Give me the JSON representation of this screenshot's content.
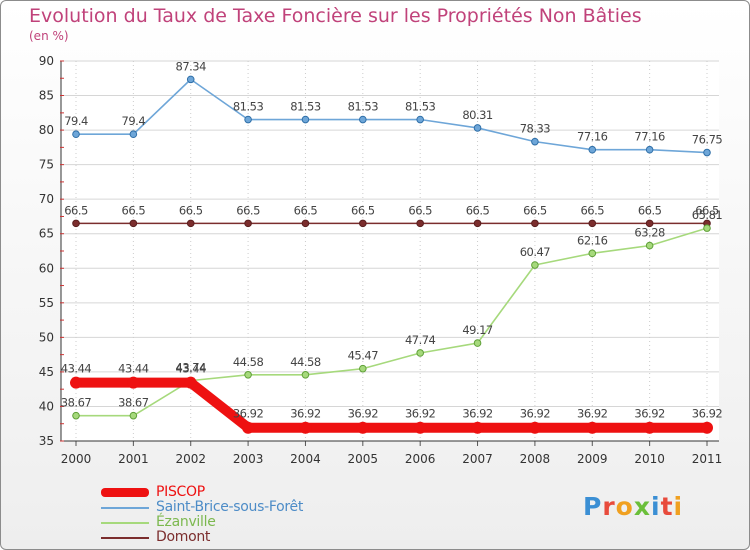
{
  "title": "Evolution du Taux de Taxe Foncière sur les Propriétés Non Bâties",
  "unit_label": "(en %)",
  "brand": "Proxiti",
  "chart_data": {
    "type": "line",
    "title": "Evolution du Taux de Taxe Foncière sur les Propriétés Non Bâties",
    "ylabel": "(en %)",
    "xlabel": "",
    "ylim": [
      35,
      90
    ],
    "yticks": [
      35,
      40,
      45,
      50,
      55,
      60,
      65,
      70,
      75,
      80,
      85,
      90
    ],
    "grid": true,
    "legend_position": "bottom-left",
    "categories": [
      "2000",
      "2001",
      "2002",
      "2003",
      "2004",
      "2005",
      "2006",
      "2007",
      "2008",
      "2009",
      "2010",
      "2011"
    ],
    "series": [
      {
        "name": "Domont",
        "color": "#7b2d2d",
        "values": [
          66.5,
          66.5,
          66.5,
          66.5,
          66.5,
          66.5,
          66.5,
          66.5,
          66.5,
          66.5,
          66.5,
          66.5
        ],
        "labels": [
          "66.5",
          "66.5",
          "66.5",
          "66.5",
          "66.5",
          "66.5",
          "66.5",
          "66.5",
          "66.5",
          "66.5",
          "66.5",
          "66.5"
        ]
      },
      {
        "name": "Ézanville",
        "color": "#a6d97c",
        "values": [
          38.67,
          38.67,
          43.74,
          44.58,
          44.58,
          45.47,
          47.74,
          49.17,
          60.47,
          62.16,
          63.28,
          65.81
        ],
        "labels": [
          "38.67",
          "38.67",
          "43.74",
          "44.58",
          "44.58",
          "45.47",
          "47.74",
          "49.17",
          "60.47",
          "62.16",
          "63.28",
          "65.81"
        ]
      },
      {
        "name": "Saint-Brice-sous-Forêt",
        "color": "#6ea6d8",
        "values": [
          79.4,
          79.4,
          87.34,
          81.53,
          81.53,
          81.53,
          81.53,
          80.31,
          78.33,
          77.16,
          77.16,
          76.75
        ],
        "labels": [
          "79.4",
          "79.4",
          "87.34",
          "81.53",
          "81.53",
          "81.53",
          "81.53",
          "80.31",
          "78.33",
          "77.16",
          "77.16",
          "76.75"
        ]
      },
      {
        "name": "PISCOP",
        "color": "#ee1111",
        "values": [
          43.44,
          43.44,
          43.44,
          36.92,
          36.92,
          36.92,
          36.92,
          36.92,
          36.92,
          36.92,
          36.92,
          36.92
        ],
        "labels": [
          "43.44",
          "43.44",
          "43.44",
          "36.92",
          "36.92",
          "36.92",
          "36.92",
          "36.92",
          "36.92",
          "36.92",
          "36.92",
          "36.92"
        ]
      }
    ],
    "legend": [
      {
        "name": "PISCOP",
        "color": "#ee1111"
      },
      {
        "name": "Saint-Brice-sous-Forêt",
        "color": "#6ea6d8"
      },
      {
        "name": "Ézanville",
        "color": "#a6d97c"
      },
      {
        "name": "Domont",
        "color": "#7b2d2d"
      }
    ]
  }
}
